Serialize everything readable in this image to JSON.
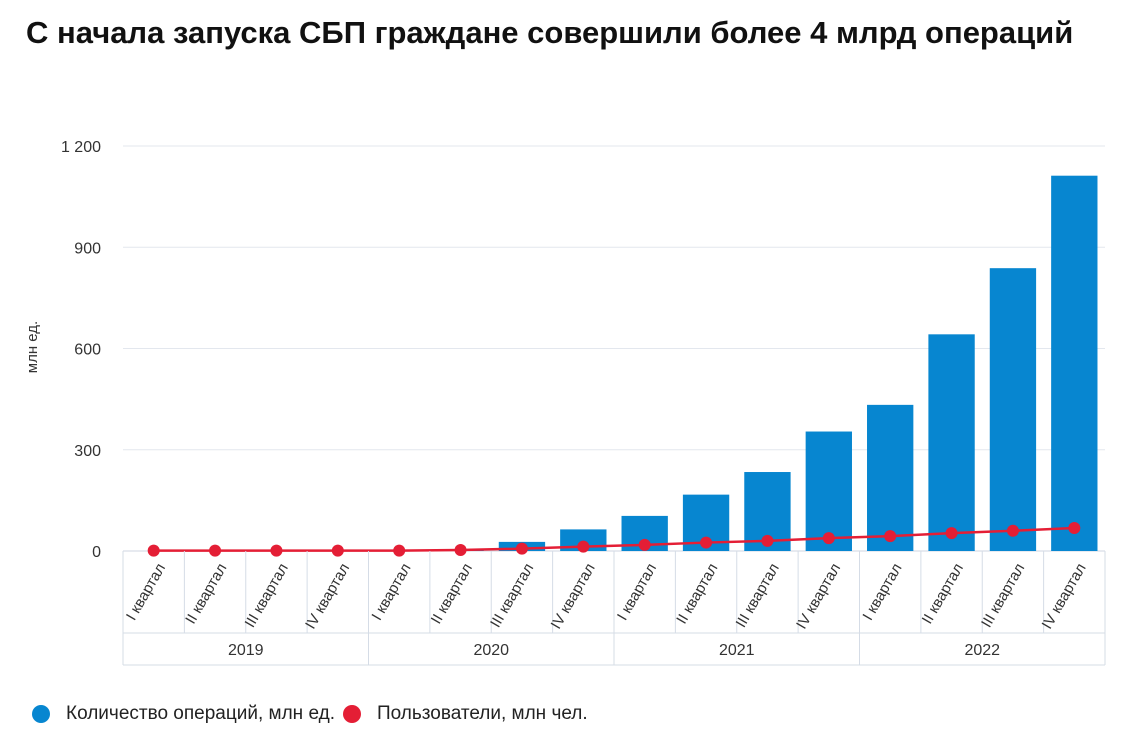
{
  "title": "С начала запуска СБП граждане совершили более 4 млрд операций",
  "chart_data": {
    "type": "bar",
    "ylabel": "млн ед.",
    "ylim": [
      0,
      1200
    ],
    "yticks": [
      0,
      300,
      600,
      900,
      1200
    ],
    "ytick_labels": [
      "0",
      "300",
      "600",
      "900",
      "1 200"
    ],
    "grid": true,
    "legend_position": "bottom-left",
    "categories": [
      "I квартал",
      "II квартал",
      "III квартал",
      "IV квартал",
      "I квартал",
      "II квартал",
      "III квартал",
      "IV квартал",
      "I квартал",
      "II квартал",
      "III квартал",
      "IV квартал",
      "I квартал",
      "II квартал",
      "III квартал",
      "IV квартал"
    ],
    "groups": [
      {
        "label": "2019",
        "span": 4
      },
      {
        "label": "2020",
        "span": 4
      },
      {
        "label": "2021",
        "span": 4
      },
      {
        "label": "2022",
        "span": 4
      }
    ],
    "series": [
      {
        "name": "Количество операций, млн ед.",
        "type": "bar",
        "color": "#0786d0",
        "values": [
          0,
          0,
          0,
          0,
          1,
          4,
          27,
          64,
          104,
          167,
          234,
          354,
          433,
          642,
          838,
          1112
        ]
      },
      {
        "name": "Пользователи, млн чел.",
        "type": "line",
        "color": "#e41e35",
        "values": [
          1,
          1,
          1,
          1,
          1,
          3,
          7,
          13,
          18,
          25,
          30,
          38,
          44,
          53,
          60,
          68
        ]
      }
    ]
  }
}
